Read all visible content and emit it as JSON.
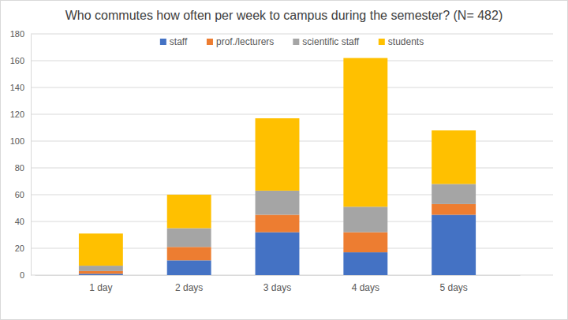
{
  "chart_data": {
    "type": "bar",
    "stacked": true,
    "title": "Who commutes how often per week to campus during the semester? (N= 482)",
    "categories": [
      "1 day",
      "2 days",
      "3 days",
      "4 days",
      "5 days"
    ],
    "series": [
      {
        "name": "staff",
        "color": "#4472c4",
        "values": [
          1,
          11,
          32,
          17,
          45
        ]
      },
      {
        "name": "prof./lecturers",
        "color": "#ed7d31",
        "values": [
          2,
          10,
          13,
          15,
          8
        ]
      },
      {
        "name": "scientific staff",
        "color": "#a5a5a5",
        "values": [
          4,
          14,
          18,
          19,
          15
        ]
      },
      {
        "name": "students",
        "color": "#ffc000",
        "values": [
          24,
          25,
          54,
          111,
          40
        ]
      }
    ],
    "ylim": [
      0,
      180
    ],
    "yticks": [
      0,
      20,
      40,
      60,
      80,
      100,
      120,
      140,
      160,
      180
    ],
    "grid": true,
    "legend": "top"
  }
}
